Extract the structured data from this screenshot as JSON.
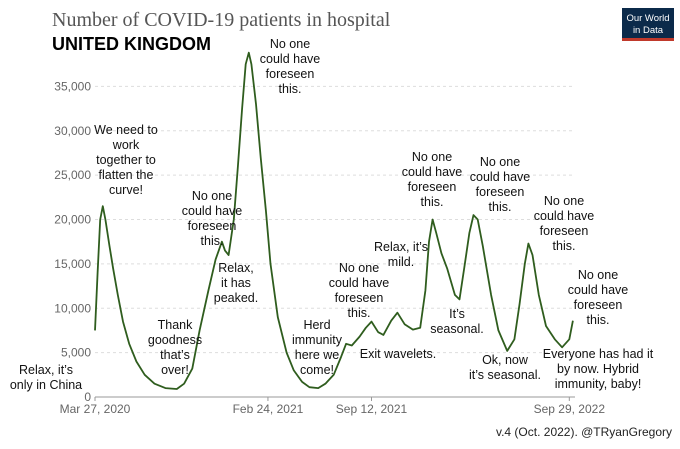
{
  "chart_data": {
    "type": "line",
    "title": "Number of COVID-19 patients in hospital",
    "subtitle": "UNITED KINGDOM",
    "logo": {
      "line1": "Our World",
      "line2": "in Data"
    },
    "credit": "v.4 (Oct. 2022). @TRyanGregory",
    "ylim": [
      0,
      40000
    ],
    "yticks": [
      {
        "value": 0,
        "label": "0"
      },
      {
        "value": 5000,
        "label": "5,000"
      },
      {
        "value": 10000,
        "label": "10,000"
      },
      {
        "value": 15000,
        "label": "15,000"
      },
      {
        "value": 20000,
        "label": "20,000"
      },
      {
        "value": 25000,
        "label": "25,000"
      },
      {
        "value": 30000,
        "label": "30,000"
      },
      {
        "value": 35000,
        "label": "35,000"
      }
    ],
    "xlim": [
      "2020-03-27",
      "2022-10-10"
    ],
    "xticks": [
      {
        "date": "2020-03-27",
        "label": "Mar 27, 2020"
      },
      {
        "date": "2021-02-24",
        "label": "Feb 24, 2021"
      },
      {
        "date": "2021-09-12",
        "label": "Sep 12, 2021"
      },
      {
        "date": "2022-09-29",
        "label": "Sep 29, 2022"
      }
    ],
    "series": [
      {
        "color": "#2f5d1e",
        "points": [
          [
            "2020-03-27",
            7500
          ],
          [
            "2020-04-01",
            14000
          ],
          [
            "2020-04-06",
            20000
          ],
          [
            "2020-04-11",
            21500
          ],
          [
            "2020-04-16",
            20000
          ],
          [
            "2020-04-24",
            17000
          ],
          [
            "2020-05-01",
            14500
          ],
          [
            "2020-05-10",
            11500
          ],
          [
            "2020-05-20",
            8500
          ],
          [
            "2020-06-01",
            6000
          ],
          [
            "2020-06-15",
            4000
          ],
          [
            "2020-07-01",
            2500
          ],
          [
            "2020-07-20",
            1500
          ],
          [
            "2020-08-10",
            1000
          ],
          [
            "2020-09-01",
            900
          ],
          [
            "2020-09-15",
            1500
          ],
          [
            "2020-10-01",
            3200
          ],
          [
            "2020-10-15",
            7500
          ],
          [
            "2020-11-01",
            12000
          ],
          [
            "2020-11-15",
            15500
          ],
          [
            "2020-11-27",
            17500
          ],
          [
            "2020-12-03",
            16500
          ],
          [
            "2020-12-10",
            16000
          ],
          [
            "2020-12-20",
            20000
          ],
          [
            "2020-12-28",
            26000
          ],
          [
            "2021-01-05",
            32500
          ],
          [
            "2021-01-12",
            37500
          ],
          [
            "2021-01-18",
            38800
          ],
          [
            "2021-01-23",
            37500
          ],
          [
            "2021-02-01",
            33000
          ],
          [
            "2021-02-10",
            27000
          ],
          [
            "2021-02-20",
            21000
          ],
          [
            "2021-03-01",
            15000
          ],
          [
            "2021-03-15",
            9000
          ],
          [
            "2021-04-01",
            5000
          ],
          [
            "2021-04-15",
            3000
          ],
          [
            "2021-05-01",
            1700
          ],
          [
            "2021-05-15",
            1100
          ],
          [
            "2021-06-01",
            1000
          ],
          [
            "2021-06-15",
            1500
          ],
          [
            "2021-07-01",
            2500
          ],
          [
            "2021-07-15",
            4500
          ],
          [
            "2021-07-25",
            6000
          ],
          [
            "2021-08-05",
            5800
          ],
          [
            "2021-08-20",
            6800
          ],
          [
            "2021-09-01",
            7800
          ],
          [
            "2021-09-12",
            8500
          ],
          [
            "2021-09-25",
            7300
          ],
          [
            "2021-10-05",
            7000
          ],
          [
            "2021-10-20",
            8600
          ],
          [
            "2021-11-01",
            9500
          ],
          [
            "2021-11-15",
            8200
          ],
          [
            "2021-12-01",
            7600
          ],
          [
            "2021-12-15",
            7800
          ],
          [
            "2021-12-25",
            12000
          ],
          [
            "2022-01-01",
            17500
          ],
          [
            "2022-01-08",
            20000
          ],
          [
            "2022-01-15",
            18500
          ],
          [
            "2022-01-25",
            16200
          ],
          [
            "2022-02-05",
            14500
          ],
          [
            "2022-02-20",
            11500
          ],
          [
            "2022-03-01",
            11000
          ],
          [
            "2022-03-10",
            14500
          ],
          [
            "2022-03-20",
            18500
          ],
          [
            "2022-03-28",
            20500
          ],
          [
            "2022-04-05",
            20000
          ],
          [
            "2022-04-15",
            17000
          ],
          [
            "2022-05-01",
            11500
          ],
          [
            "2022-05-15",
            7500
          ],
          [
            "2022-06-01",
            5200
          ],
          [
            "2022-06-15",
            6500
          ],
          [
            "2022-06-25",
            10500
          ],
          [
            "2022-07-05",
            15000
          ],
          [
            "2022-07-12",
            17300
          ],
          [
            "2022-07-20",
            16000
          ],
          [
            "2022-08-01",
            11500
          ],
          [
            "2022-08-15",
            8000
          ],
          [
            "2022-09-01",
            6500
          ],
          [
            "2022-09-15",
            5600
          ],
          [
            "2022-09-29",
            6500
          ],
          [
            "2022-10-06",
            8600
          ]
        ]
      }
    ],
    "annotations": [
      {
        "lines": [
          "Relax, it’s",
          "only in China"
        ]
      },
      {
        "lines": [
          "We need to",
          "work",
          "together to",
          "flatten the",
          "curve!"
        ]
      },
      {
        "lines": [
          "Thank",
          "goodness",
          "that’s",
          "over!"
        ]
      },
      {
        "lines": [
          "No one",
          "could have",
          "foreseen",
          "this."
        ]
      },
      {
        "lines": [
          "Relax,",
          "it has",
          "peaked."
        ]
      },
      {
        "lines": [
          "No one",
          "could have",
          "foreseen",
          "this."
        ]
      },
      {
        "lines": [
          "Herd",
          "immunity",
          "here we",
          "come!"
        ]
      },
      {
        "lines": [
          "No one",
          "could have",
          "foreseen",
          "this."
        ]
      },
      {
        "lines": [
          "Exit wavelets."
        ]
      },
      {
        "lines": [
          "Relax, it’s",
          "mild."
        ]
      },
      {
        "lines": [
          "No one",
          "could have",
          "foreseen",
          "this."
        ]
      },
      {
        "lines": [
          "It’s",
          "seasonal."
        ]
      },
      {
        "lines": [
          "No one",
          "could have",
          "foreseen",
          "this."
        ]
      },
      {
        "lines": [
          "Ok, now",
          "it’s seasonal."
        ]
      },
      {
        "lines": [
          "No one",
          "could have",
          "foreseen",
          "this."
        ]
      },
      {
        "lines": [
          "No one",
          "could have",
          "foreseen",
          "this."
        ]
      },
      {
        "lines": [
          "Everyone has had it",
          "by now. Hybrid",
          "immunity, baby!"
        ]
      }
    ]
  }
}
